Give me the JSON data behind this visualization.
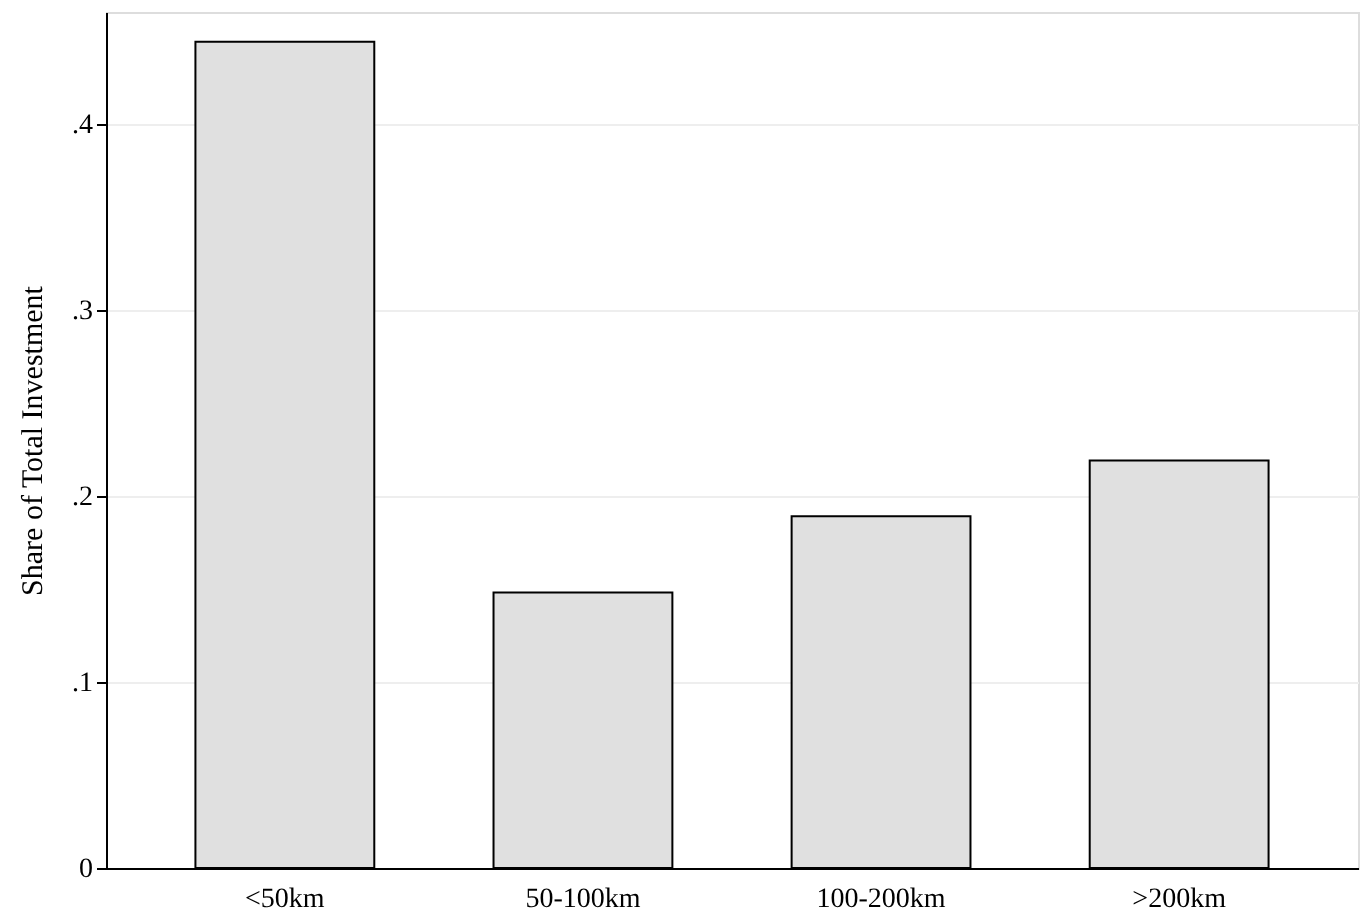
{
  "chart_data": {
    "type": "bar",
    "ylabel": "Share of Total Investment",
    "categories": [
      "<50km",
      "50-100km",
      "100-200km",
      ">200km"
    ],
    "values": [
      0.444,
      0.148,
      0.189,
      0.219
    ],
    "color": "#e0e0e0",
    "ylim": [
      0,
      0.46
    ],
    "yticks": [
      0,
      {
        "value": 0.1,
        "label": ".1"
      },
      {
        "value": 0.2,
        "label": ".2"
      },
      {
        "value": 0.3,
        "label": ".3"
      },
      {
        "value": 0.4,
        "label": ".4"
      }
    ],
    "grid": "y"
  }
}
